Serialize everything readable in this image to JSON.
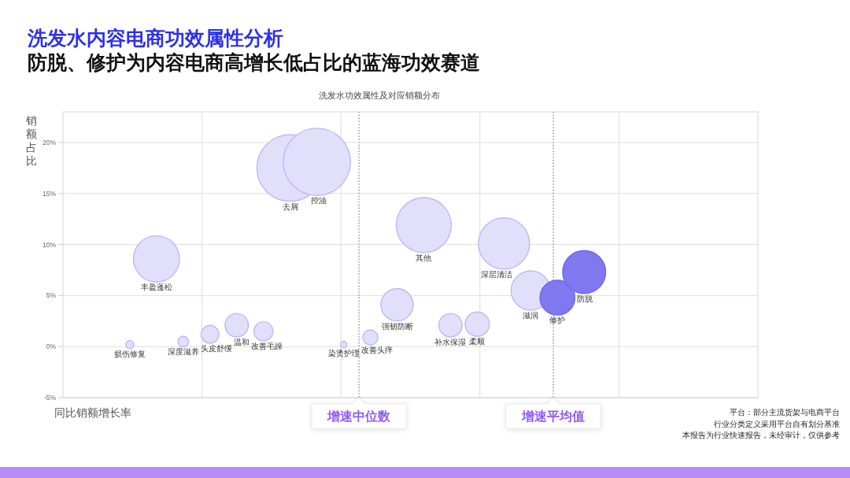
{
  "chart_data": {
    "type": "bubble",
    "title": "洗发水内容电商功效属性分析",
    "subtitle": "防脱、修护为内容电商高增长低占比的蓝海功效赛道",
    "xlabel": "同比销额增长率",
    "ylabel": "销额占比",
    "annotations": [
      "洗发水功效属性及对应销额分布",
      "增速中位数",
      "增速平均值",
      "平台：部分主流货架与电商平台",
      "行业分类定义采用平台自有划分基准",
      "本报告为行业快速报告，未经审计，仅供参考"
    ],
    "categories": [
      null,
      null,
      null,
      null,
      null,
      null,
      null,
      null,
      null,
      null,
      null,
      null,
      null,
      null,
      null,
      null,
      null,
      null,
      null,
      null,
      null,
      null,
      null,
      null,
      null,
      null
    ],
    "ylim": [
      -5,
      23
    ],
    "yticks": [
      {
        "value": -5,
        "label": "-5%"
      },
      {
        "value": 0,
        "label": "0%"
      },
      {
        "value": 5,
        "label": "5%"
      },
      {
        "value": 10,
        "label": "10%"
      },
      {
        "value": 15,
        "label": "15%"
      },
      {
        "value": 20,
        "label": "20%"
      }
    ],
    "tick_labels": "y",
    "grid": true,
    "series": [
      {
        "name": "损伤修复",
        "color": "#e2dffb",
        "values": [
          null,
          null,
          0.2,
          null,
          null,
          null,
          null,
          null,
          null,
          null,
          null,
          null,
          null,
          null,
          null,
          null,
          null,
          null,
          null,
          null,
          null,
          null,
          null,
          null,
          null,
          null
        ],
        "sizes": [
          null,
          null,
          0.014,
          null,
          null,
          null,
          null,
          null,
          null,
          null,
          null,
          null,
          null,
          null,
          null,
          null,
          null,
          null,
          null,
          null,
          null,
          null,
          null,
          null,
          null,
          null
        ]
      },
      {
        "name": "丰盈蓬松",
        "color": "#e2dffb",
        "values": [
          null,
          null,
          null,
          8.6,
          null,
          null,
          null,
          null,
          null,
          null,
          null,
          null,
          null,
          null,
          null,
          null,
          null,
          null,
          null,
          null,
          null,
          null,
          null,
          null,
          null,
          null
        ],
        "sizes": [
          null,
          null,
          null,
          0.47,
          null,
          null,
          null,
          null,
          null,
          null,
          null,
          null,
          null,
          null,
          null,
          null,
          null,
          null,
          null,
          null,
          null,
          null,
          null,
          null,
          null,
          null
        ]
      },
      {
        "name": "深度滋养",
        "color": "#e2dffb",
        "values": [
          null,
          null,
          null,
          null,
          0.5,
          null,
          null,
          null,
          null,
          null,
          null,
          null,
          null,
          null,
          null,
          null,
          null,
          null,
          null,
          null,
          null,
          null,
          null,
          null,
          null,
          null
        ],
        "sizes": [
          null,
          null,
          null,
          null,
          0.025,
          null,
          null,
          null,
          null,
          null,
          null,
          null,
          null,
          null,
          null,
          null,
          null,
          null,
          null,
          null,
          null,
          null,
          null,
          null,
          null,
          null
        ]
      },
      {
        "name": "头皮舒缓",
        "color": "#e2dffb",
        "values": [
          null,
          null,
          null,
          null,
          null,
          1.2,
          null,
          null,
          null,
          null,
          null,
          null,
          null,
          null,
          null,
          null,
          null,
          null,
          null,
          null,
          null,
          null,
          null,
          null,
          null,
          null
        ],
        "sizes": [
          null,
          null,
          null,
          null,
          null,
          0.07,
          null,
          null,
          null,
          null,
          null,
          null,
          null,
          null,
          null,
          null,
          null,
          null,
          null,
          null,
          null,
          null,
          null,
          null,
          null,
          null
        ]
      },
      {
        "name": "温和",
        "color": "#e2dffb",
        "values": [
          null,
          null,
          null,
          null,
          null,
          null,
          2.1,
          null,
          null,
          null,
          null,
          null,
          null,
          null,
          null,
          null,
          null,
          null,
          null,
          null,
          null,
          null,
          null,
          null,
          null,
          null
        ],
        "sizes": [
          null,
          null,
          null,
          null,
          null,
          null,
          0.12,
          null,
          null,
          null,
          null,
          null,
          null,
          null,
          null,
          null,
          null,
          null,
          null,
          null,
          null,
          null,
          null,
          null,
          null,
          null
        ]
      },
      {
        "name": "改善毛躁",
        "color": "#e2dffb",
        "values": [
          null,
          null,
          null,
          null,
          null,
          null,
          null,
          1.5,
          null,
          null,
          null,
          null,
          null,
          null,
          null,
          null,
          null,
          null,
          null,
          null,
          null,
          null,
          null,
          null,
          null,
          null
        ],
        "sizes": [
          null,
          null,
          null,
          null,
          null,
          null,
          null,
          0.08,
          null,
          null,
          null,
          null,
          null,
          null,
          null,
          null,
          null,
          null,
          null,
          null,
          null,
          null,
          null,
          null,
          null,
          null
        ]
      },
      {
        "name": "去屑",
        "color": "#e2dffb",
        "values": [
          null,
          null,
          null,
          null,
          null,
          null,
          null,
          null,
          17.5,
          null,
          null,
          null,
          null,
          null,
          null,
          null,
          null,
          null,
          null,
          null,
          null,
          null,
          null,
          null,
          null,
          null
        ],
        "sizes": [
          null,
          null,
          null,
          null,
          null,
          null,
          null,
          null,
          0.98,
          null,
          null,
          null,
          null,
          null,
          null,
          null,
          null,
          null,
          null,
          null,
          null,
          null,
          null,
          null,
          null,
          null
        ]
      },
      {
        "name": "控油",
        "color": "#e2dffb",
        "values": [
          null,
          null,
          null,
          null,
          null,
          null,
          null,
          null,
          null,
          18.1,
          null,
          null,
          null,
          null,
          null,
          null,
          null,
          null,
          null,
          null,
          null,
          null,
          null,
          null,
          null,
          null
        ],
        "sizes": [
          null,
          null,
          null,
          null,
          null,
          null,
          null,
          null,
          null,
          1,
          null,
          null,
          null,
          null,
          null,
          null,
          null,
          null,
          null,
          null,
          null,
          null,
          null,
          null,
          null,
          null
        ]
      },
      {
        "name": "染烫护理",
        "color": "#e2dffb",
        "values": [
          null,
          null,
          null,
          null,
          null,
          null,
          null,
          null,
          null,
          null,
          0.2,
          null,
          null,
          null,
          null,
          null,
          null,
          null,
          null,
          null,
          null,
          null,
          null,
          null,
          null,
          null
        ],
        "sizes": [
          null,
          null,
          null,
          null,
          null,
          null,
          null,
          null,
          null,
          null,
          0.009,
          null,
          null,
          null,
          null,
          null,
          null,
          null,
          null,
          null,
          null,
          null,
          null,
          null,
          null,
          null
        ]
      },
      {
        "name": "改善头痒",
        "color": "#e2dffb",
        "values": [
          null,
          null,
          null,
          null,
          null,
          null,
          null,
          null,
          null,
          null,
          null,
          0.9,
          null,
          null,
          null,
          null,
          null,
          null,
          null,
          null,
          null,
          null,
          null,
          null,
          null,
          null
        ],
        "sizes": [
          null,
          null,
          null,
          null,
          null,
          null,
          null,
          null,
          null,
          null,
          null,
          0.05,
          null,
          null,
          null,
          null,
          null,
          null,
          null,
          null,
          null,
          null,
          null,
          null,
          null,
          null
        ]
      },
      {
        "name": "强韧防断",
        "color": "#e2dffb",
        "values": [
          null,
          null,
          null,
          null,
          null,
          null,
          null,
          null,
          null,
          null,
          null,
          null,
          4.1,
          null,
          null,
          null,
          null,
          null,
          null,
          null,
          null,
          null,
          null,
          null,
          null,
          null
        ],
        "sizes": [
          null,
          null,
          null,
          null,
          null,
          null,
          null,
          null,
          null,
          null,
          null,
          null,
          0.23,
          null,
          null,
          null,
          null,
          null,
          null,
          null,
          null,
          null,
          null,
          null,
          null,
          null
        ]
      },
      {
        "name": "其他",
        "color": "#e2dffb",
        "values": [
          null,
          null,
          null,
          null,
          null,
          null,
          null,
          null,
          null,
          null,
          null,
          null,
          null,
          11.9,
          null,
          null,
          null,
          null,
          null,
          null,
          null,
          null,
          null,
          null,
          null,
          null
        ],
        "sizes": [
          null,
          null,
          null,
          null,
          null,
          null,
          null,
          null,
          null,
          null,
          null,
          null,
          null,
          0.67,
          null,
          null,
          null,
          null,
          null,
          null,
          null,
          null,
          null,
          null,
          null,
          null
        ]
      },
      {
        "name": "补水保湿",
        "color": "#e2dffb",
        "values": [
          null,
          null,
          null,
          null,
          null,
          null,
          null,
          null,
          null,
          null,
          null,
          null,
          null,
          null,
          2.1,
          null,
          null,
          null,
          null,
          null,
          null,
          null,
          null,
          null,
          null,
          null
        ],
        "sizes": [
          null,
          null,
          null,
          null,
          null,
          null,
          null,
          null,
          null,
          null,
          null,
          null,
          null,
          null,
          0.12,
          null,
          null,
          null,
          null,
          null,
          null,
          null,
          null,
          null,
          null,
          null
        ]
      },
      {
        "name": "柔顺",
        "color": "#e2dffb",
        "values": [
          null,
          null,
          null,
          null,
          null,
          null,
          null,
          null,
          null,
          null,
          null,
          null,
          null,
          null,
          null,
          2.2,
          null,
          null,
          null,
          null,
          null,
          null,
          null,
          null,
          null,
          null
        ],
        "sizes": [
          null,
          null,
          null,
          null,
          null,
          null,
          null,
          null,
          null,
          null,
          null,
          null,
          null,
          null,
          null,
          0.13,
          null,
          null,
          null,
          null,
          null,
          null,
          null,
          null,
          null,
          null
        ]
      },
      {
        "name": "深层清洁",
        "color": "#e2dffb",
        "values": [
          null,
          null,
          null,
          null,
          null,
          null,
          null,
          null,
          null,
          null,
          null,
          null,
          null,
          null,
          null,
          null,
          10.1,
          null,
          null,
          null,
          null,
          null,
          null,
          null,
          null,
          null
        ],
        "sizes": [
          null,
          null,
          null,
          null,
          null,
          null,
          null,
          null,
          null,
          null,
          null,
          null,
          null,
          null,
          null,
          null,
          0.58,
          null,
          null,
          null,
          null,
          null,
          null,
          null,
          null,
          null
        ]
      },
      {
        "name": "滋润",
        "color": "#e2dffb",
        "values": [
          null,
          null,
          null,
          null,
          null,
          null,
          null,
          null,
          null,
          null,
          null,
          null,
          null,
          null,
          null,
          null,
          null,
          5.5,
          null,
          null,
          null,
          null,
          null,
          null,
          null,
          null
        ],
        "sizes": [
          null,
          null,
          null,
          null,
          null,
          null,
          null,
          null,
          null,
          null,
          null,
          null,
          null,
          null,
          null,
          null,
          null,
          0.34,
          null,
          null,
          null,
          null,
          null,
          null,
          null,
          null
        ]
      },
      {
        "name": "修护",
        "color": "#7f78ef",
        "values": [
          null,
          null,
          null,
          null,
          null,
          null,
          null,
          null,
          null,
          null,
          null,
          null,
          null,
          null,
          null,
          null,
          null,
          null,
          4.8,
          null,
          null,
          null,
          null,
          null,
          null,
          null
        ],
        "sizes": [
          null,
          null,
          null,
          null,
          null,
          null,
          null,
          null,
          null,
          null,
          null,
          null,
          null,
          null,
          null,
          null,
          null,
          null,
          0.27,
          null,
          null,
          null,
          null,
          null,
          null,
          null
        ]
      },
      {
        "name": "防脱",
        "color": "#7f78ef",
        "values": [
          null,
          null,
          null,
          null,
          null,
          null,
          null,
          null,
          null,
          null,
          null,
          null,
          null,
          null,
          null,
          null,
          null,
          null,
          null,
          7.3,
          null,
          null,
          null,
          null,
          null,
          null
        ],
        "sizes": [
          null,
          null,
          null,
          null,
          null,
          null,
          null,
          null,
          null,
          null,
          null,
          null,
          null,
          null,
          null,
          null,
          null,
          null,
          null,
          0.41,
          null,
          null,
          null,
          null,
          null,
          null
        ]
      }
    ]
  }
}
